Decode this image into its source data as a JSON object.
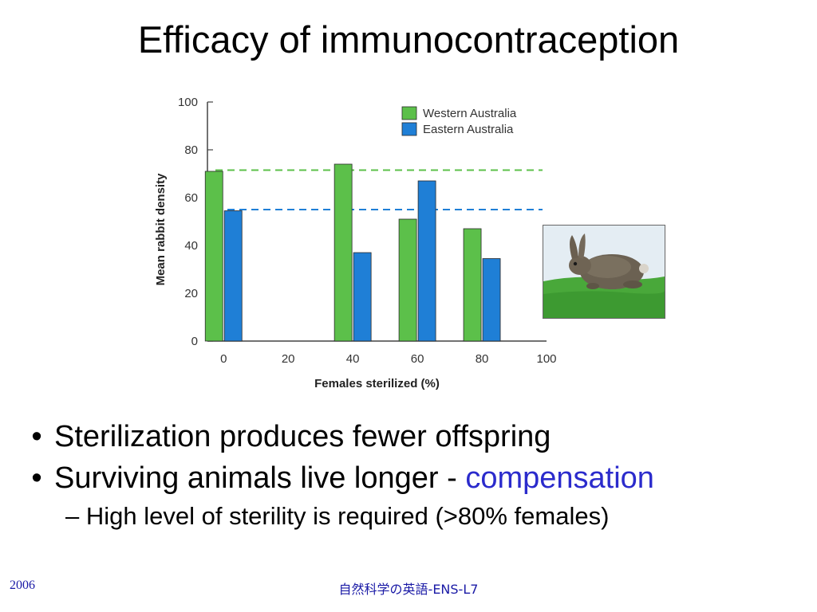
{
  "slide": {
    "title": "Efficacy of immunocontraception",
    "bullets": [
      {
        "text": "Sterilization produces fewer offspring",
        "highlight": ""
      },
      {
        "text": "Surviving animals live longer - ",
        "highlight": "compensation"
      }
    ],
    "sub_bullet": "High level of sterility is required (>80% females)",
    "footer_left": "2006",
    "footer_center": "自然科学の英語-ENS-L7",
    "colors": {
      "highlight": "#2b2bcc",
      "footer": "#1a1aa6",
      "western": "#5cc04a",
      "eastern": "#1f7fd6"
    },
    "photo_icon": "rabbit-photo"
  },
  "chart_data": {
    "type": "bar",
    "xlabel": "Females sterilized (%)",
    "ylabel": "Mean rabbit density",
    "x_ticks": [
      "0",
      "20",
      "40",
      "60",
      "80",
      "100"
    ],
    "y_ticks": [
      "0",
      "20",
      "40",
      "60",
      "80",
      "100"
    ],
    "ylim": [
      0,
      100
    ],
    "xlim": [
      -5,
      100
    ],
    "legend_position": "top-right",
    "series": [
      {
        "name": "Western Australia",
        "color": "#5cc04a",
        "x": [
          0,
          40,
          60,
          80
        ],
        "values": [
          71,
          74,
          51,
          47
        ],
        "reference_line": 71.5
      },
      {
        "name": "Eastern Australia",
        "color": "#1f7fd6",
        "x": [
          0,
          40,
          60,
          80
        ],
        "values": [
          54.5,
          37,
          67,
          34.5
        ],
        "reference_line": 55
      }
    ]
  }
}
